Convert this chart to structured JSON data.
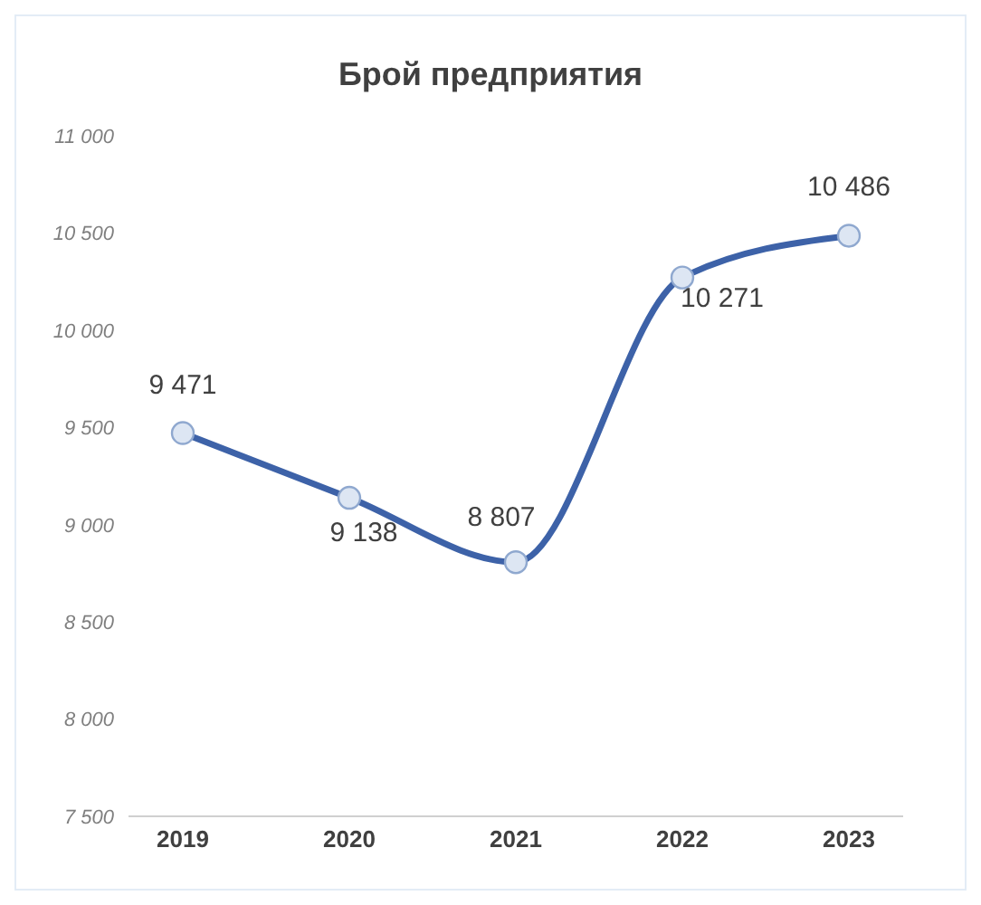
{
  "chart_data": {
    "type": "line",
    "title": "Брой предприятия",
    "categories": [
      "2019",
      "2020",
      "2021",
      "2022",
      "2023"
    ],
    "series": [
      {
        "color": "#3d62a8",
        "values": [
          9471,
          9138,
          8807,
          10271,
          10486
        ],
        "value_labels": [
          "9 471",
          "9 138",
          "8 807",
          "10 271",
          "10 486"
        ]
      }
    ],
    "ylim": [
      7500,
      11000
    ],
    "yticks": [
      {
        "value": 7500,
        "label": "7 500"
      },
      {
        "value": 8000,
        "label": "8 000"
      },
      {
        "value": 8500,
        "label": "8 500"
      },
      {
        "value": 9000,
        "label": "9 000"
      },
      {
        "value": 9500,
        "label": "9 500"
      },
      {
        "value": 10000,
        "label": "10 000"
      },
      {
        "value": 10500,
        "label": "10 500"
      },
      {
        "value": 11000,
        "label": "11 000"
      }
    ],
    "grid": false,
    "legend": false,
    "marker": "circle",
    "line_style": "solid"
  }
}
